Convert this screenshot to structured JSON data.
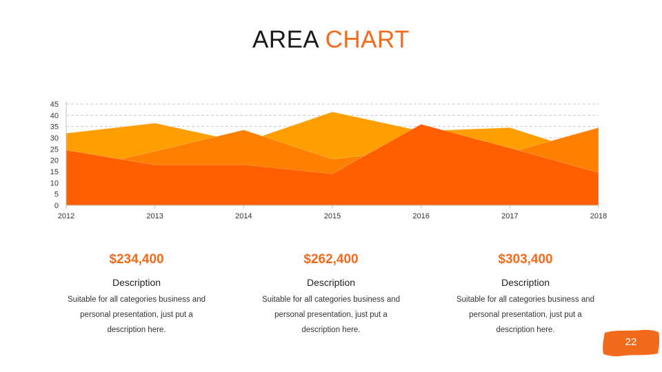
{
  "title": {
    "main": "AREA",
    "accent": "CHART"
  },
  "chart_data": {
    "type": "area",
    "title": "",
    "xlabel": "",
    "ylabel": "",
    "x": [
      "2012",
      "2013",
      "2014",
      "2015",
      "2016",
      "2017",
      "2018"
    ],
    "ylim": [
      0,
      45
    ],
    "yticks": [
      0,
      5,
      10,
      15,
      20,
      25,
      30,
      35,
      40,
      45
    ],
    "grid": true,
    "legend": "none",
    "series": [
      {
        "values": [
          32,
          36.5,
          28,
          41.5,
          33,
          34.5,
          22
        ],
        "color": "#ff9e00"
      },
      {
        "values": [
          15,
          24,
          33.5,
          20.5,
          25,
          23.5,
          34.5
        ],
        "color": "#ff7f00"
      },
      {
        "values": [
          24.5,
          18,
          18,
          14,
          36,
          25.5,
          14.5
        ],
        "color": "#ff5f00"
      }
    ]
  },
  "cards": [
    {
      "price": "$234,400",
      "heading": "Description",
      "lines": [
        "Suitable for all categories business and",
        "personal presentation, just put a",
        "description here."
      ]
    },
    {
      "price": "$262,400",
      "heading": "Description",
      "lines": [
        "Suitable for all categories business and",
        "personal presentation, just put a",
        "description here."
      ]
    },
    {
      "price": "$303,400",
      "heading": "Description",
      "lines": [
        "Suitable for all categories business and",
        "personal presentation, just put a",
        "description here."
      ]
    }
  ],
  "page_number": "22",
  "colors": {
    "accent": "#f26b1d",
    "badge": "#f26b1d"
  }
}
